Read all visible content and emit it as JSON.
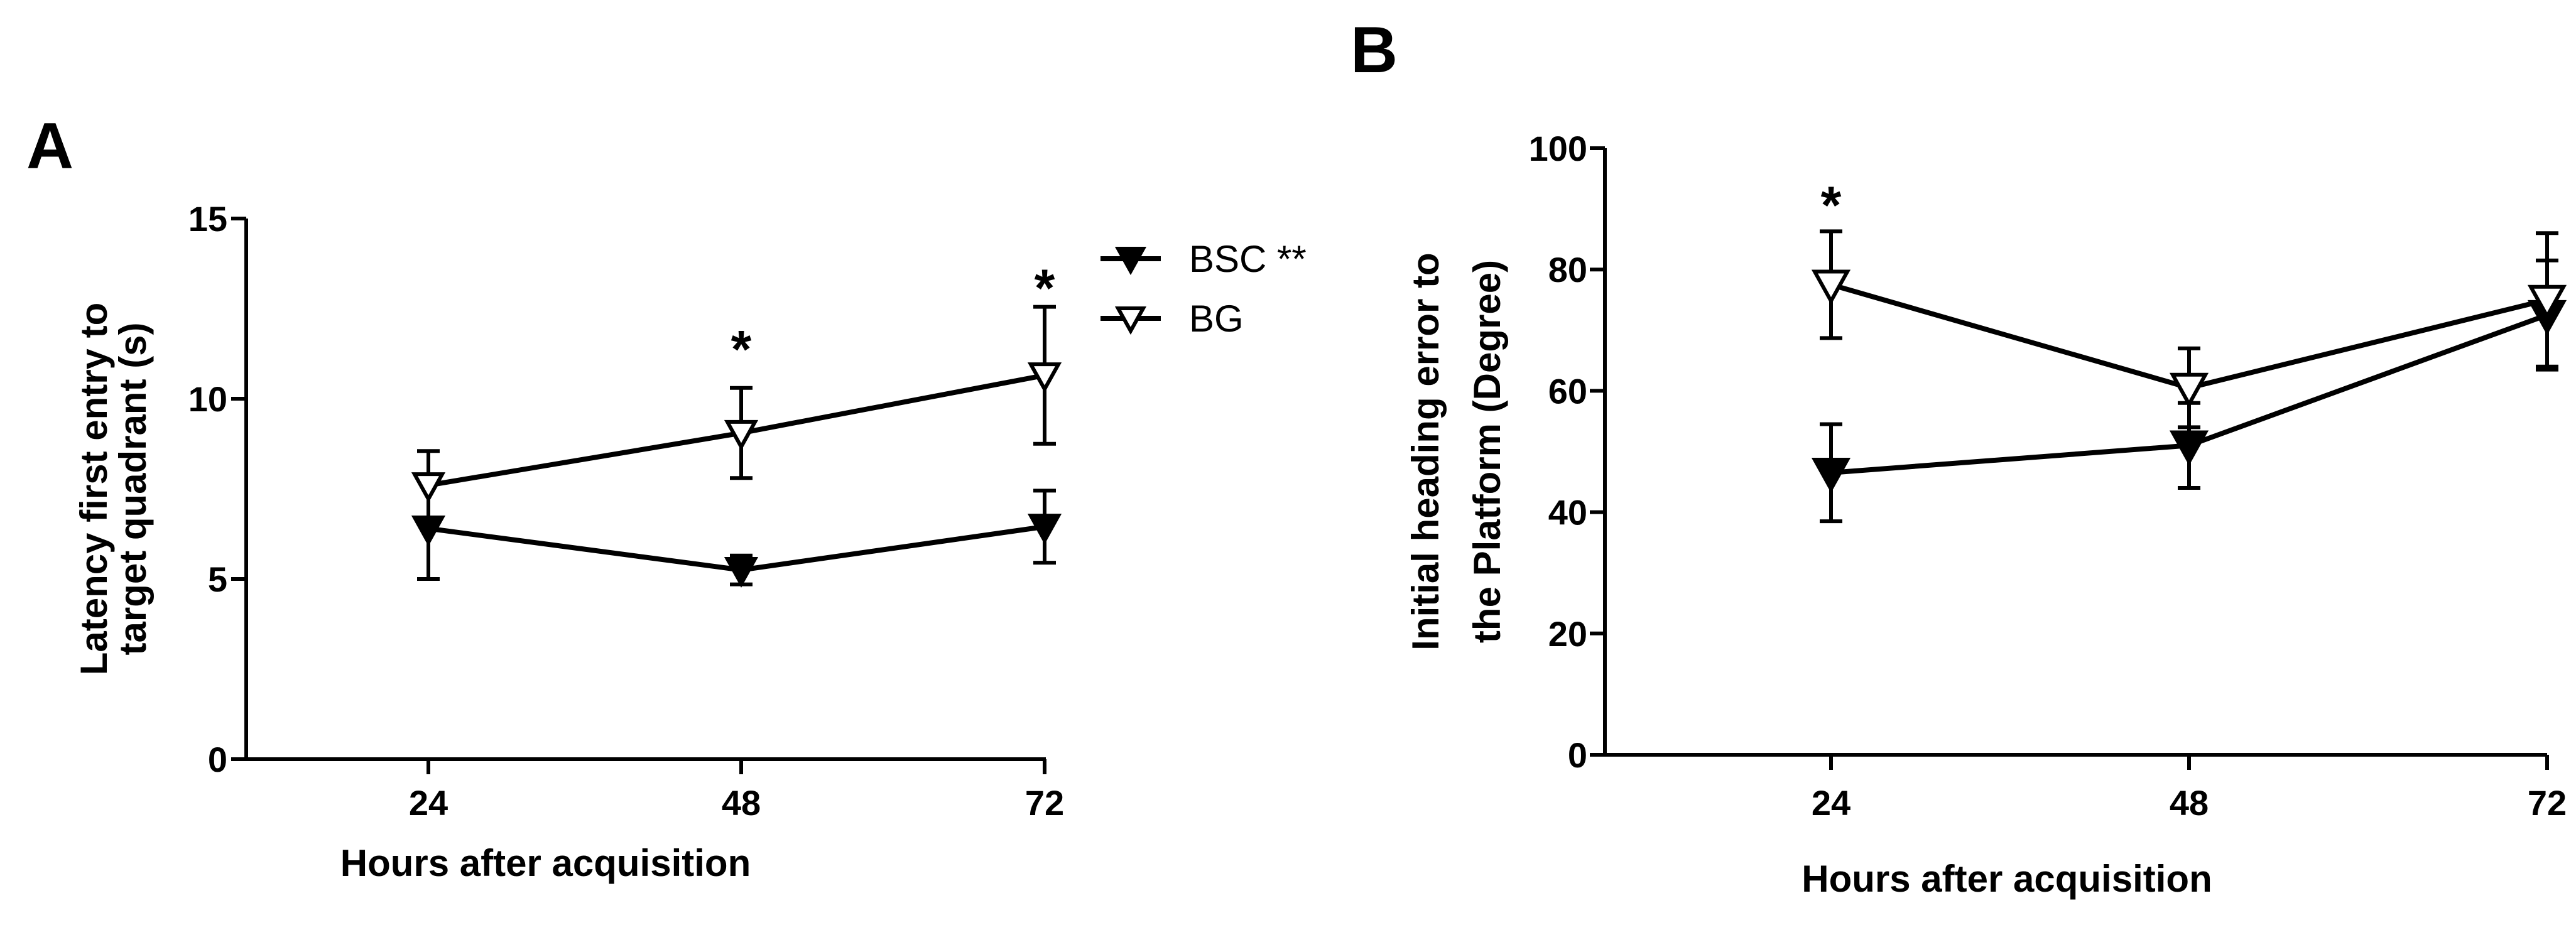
{
  "chart_data": [
    {
      "panel": "A",
      "type": "line",
      "x": [
        24,
        48,
        72
      ],
      "xlabel": "Hours after acquisition",
      "ylabel_lines": [
        "Latency first entry to",
        "target quadrant (s)"
      ],
      "ylim": [
        0,
        15
      ],
      "yticks": [
        0,
        5,
        10,
        15
      ],
      "xticks": [
        24,
        48,
        72
      ],
      "series": [
        {
          "name": "BSC **",
          "marker": "filled-triangle-down",
          "values": [
            6.4,
            5.25,
            6.45
          ],
          "errors": [
            1.4,
            0.4,
            1.0
          ]
        },
        {
          "name": "BG",
          "marker": "open-triangle-down",
          "values": [
            7.6,
            9.05,
            10.65
          ],
          "errors": [
            0.95,
            1.25,
            1.9
          ]
        }
      ],
      "annotations": [
        {
          "text": "*",
          "x": 48,
          "y": 11.6
        },
        {
          "text": "*",
          "x": 72,
          "y": 13.3
        }
      ],
      "legend": "top-right",
      "grid": false
    },
    {
      "panel": "B",
      "type": "line",
      "x": [
        24,
        48,
        72
      ],
      "xlabel": "Hours after acquisition",
      "ylabel_lines": [
        "Initial heading error to",
        "the Platform (Degree)"
      ],
      "ylim": [
        0,
        100
      ],
      "yticks": [
        0,
        20,
        40,
        60,
        80,
        100
      ],
      "xticks": [
        24,
        48,
        72
      ],
      "series": [
        {
          "name": "BSC **",
          "marker": "filled-triangle-down",
          "values": [
            46.5,
            51,
            72.5
          ],
          "errors": [
            8,
            7,
            9
          ]
        },
        {
          "name": "BG",
          "marker": "open-triangle-down",
          "values": [
            77.5,
            60.5,
            75
          ],
          "errors": [
            8.8,
            6.5,
            11
          ]
        }
      ],
      "annotations": [
        {
          "text": "*",
          "x": 24,
          "y": 92
        }
      ],
      "grid": false
    }
  ]
}
